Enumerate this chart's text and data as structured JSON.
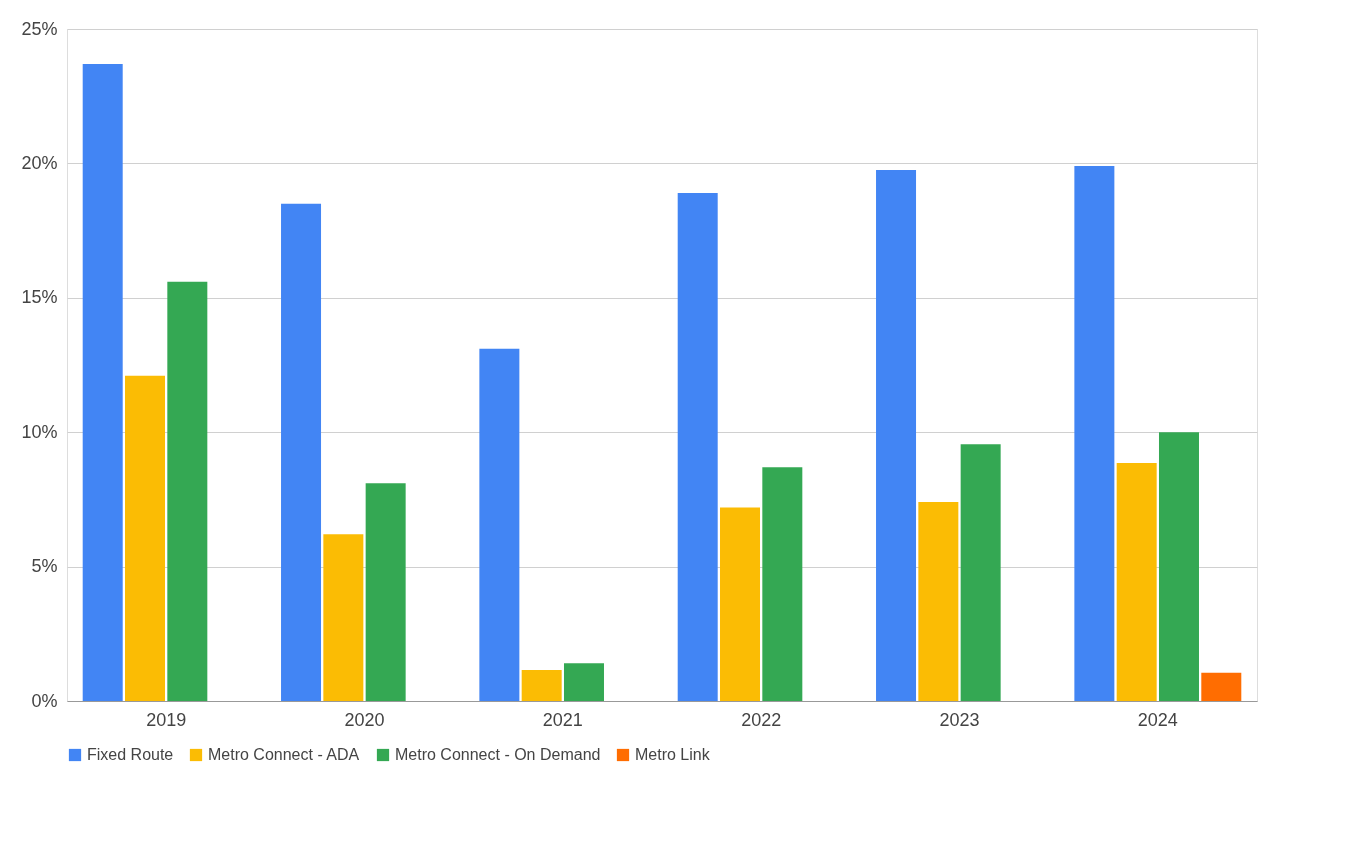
{
  "chart_data": {
    "type": "bar",
    "categories": [
      "2019",
      "2020",
      "2021",
      "2022",
      "2023",
      "2024"
    ],
    "series": [
      {
        "name": "Fixed Route",
        "color": "#4285f4",
        "values": [
          23.7,
          18.5,
          13.1,
          18.9,
          19.75,
          19.9
        ]
      },
      {
        "name": "Metro Connect - ADA",
        "color": "#fbbc04",
        "values": [
          12.1,
          6.2,
          1.15,
          7.2,
          7.4,
          8.85
        ]
      },
      {
        "name": "Metro Connect - On Demand",
        "color": "#34a853",
        "values": [
          15.6,
          8.1,
          1.4,
          8.7,
          9.55,
          10.0
        ]
      },
      {
        "name": "Metro Link",
        "color": "#ff6d01",
        "values": [
          null,
          null,
          null,
          null,
          null,
          1.05
        ]
      }
    ],
    "ylim": [
      0,
      25
    ],
    "yticks": [
      {
        "value": 0,
        "label": "0%"
      },
      {
        "value": 5,
        "label": "5%"
      },
      {
        "value": 10,
        "label": "10%"
      },
      {
        "value": 15,
        "label": "15%"
      },
      {
        "value": 20,
        "label": "20%"
      },
      {
        "value": 25,
        "label": "25%"
      }
    ],
    "grid": "y",
    "legend": "bottom"
  }
}
